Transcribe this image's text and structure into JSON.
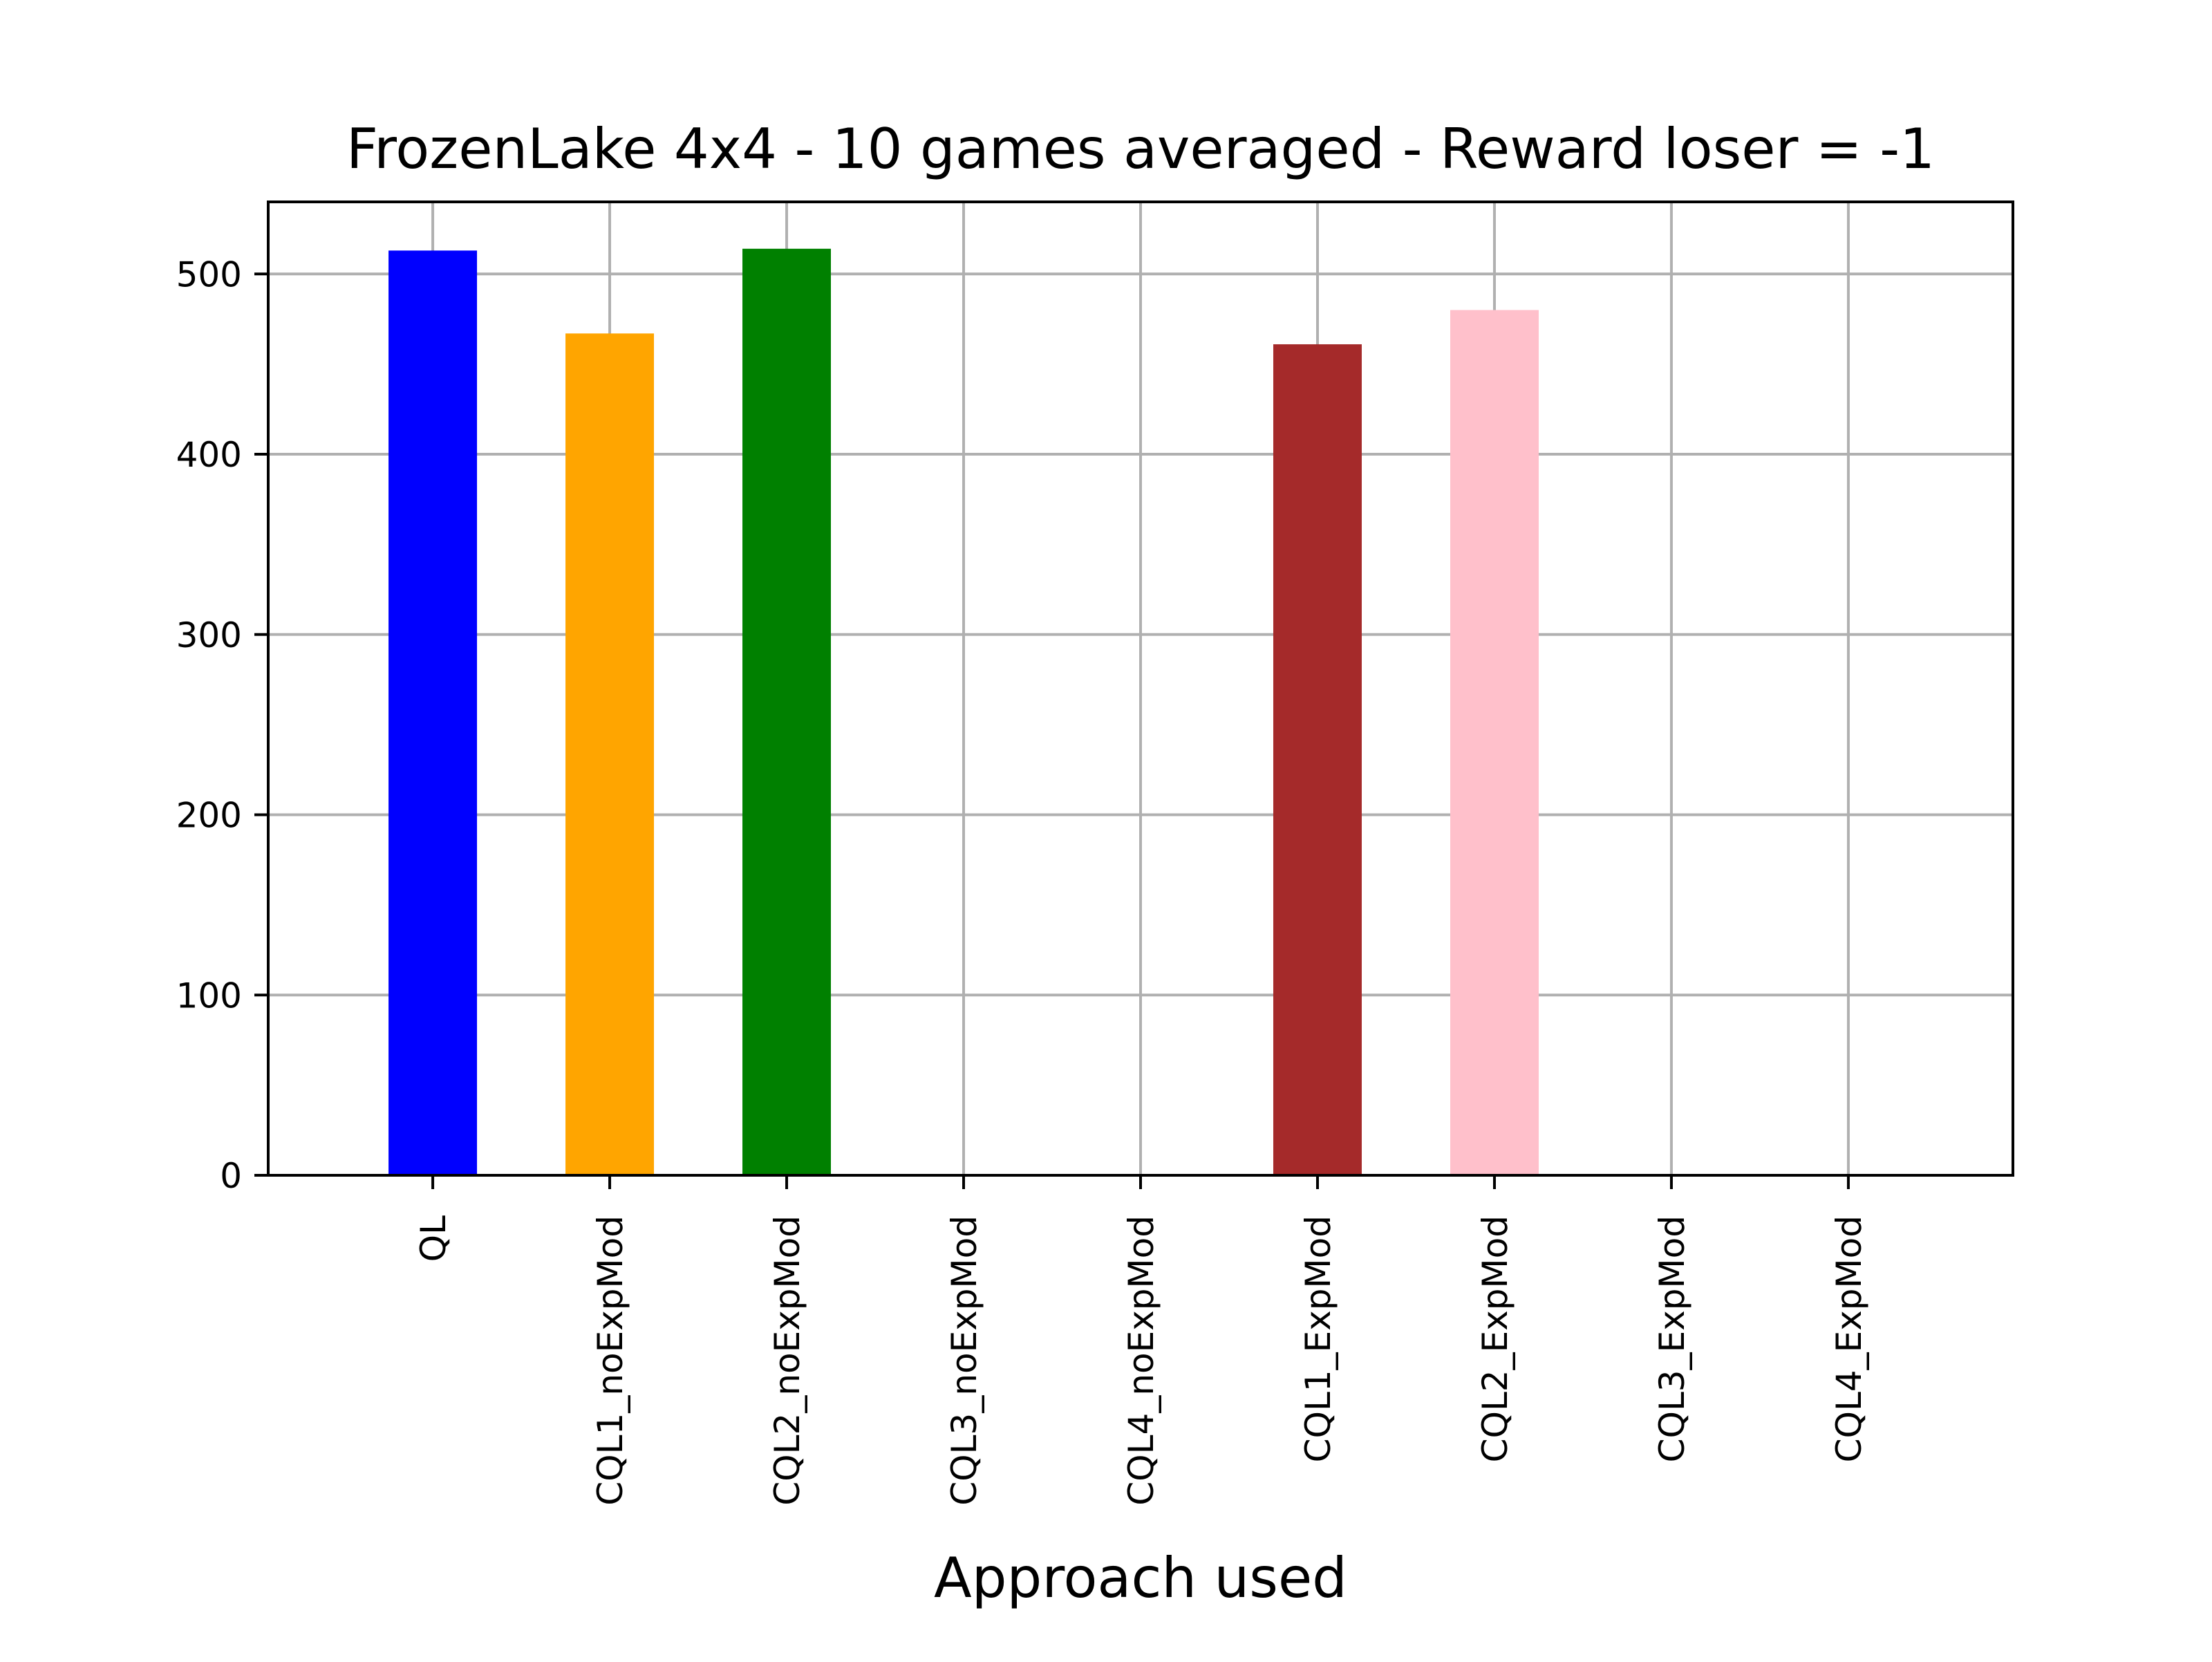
{
  "chart_data": {
    "type": "bar",
    "title": "FrozenLake 4x4 - 10 games averaged - Reward loser = -1",
    "xlabel": "Approach used",
    "ylabel": "",
    "categories": [
      "QL",
      "CQL1_noExpMod",
      "CQL2_noExpMod",
      "CQL3_noExpMod",
      "CQL4_noExpMod",
      "CQL1_ExpMod",
      "CQL2_ExpMod",
      "CQL3_ExpMod",
      "CQL4_ExpMod"
    ],
    "values": [
      513,
      467,
      514,
      0,
      0,
      461,
      480,
      0,
      0
    ],
    "colors": [
      "#0000ff",
      "#ffa500",
      "#008000",
      "#000000",
      "#000000",
      "#a52a2a",
      "#ffc0cb",
      "#000000",
      "#000000"
    ],
    "ylim": [
      0,
      540
    ],
    "yticks": [
      0,
      100,
      200,
      300,
      400,
      500
    ],
    "grid": true
  }
}
